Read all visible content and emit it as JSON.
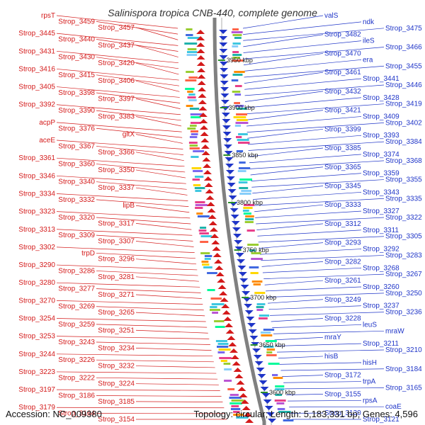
{
  "title": "Salinispora tropica CNB-440, complete genome",
  "accession": "Accession: NC_009380",
  "topology": "Topology: circular; Length: 5,183,331 bp; Genes: 4,596",
  "colors": {
    "left_labels": "#d41a1a",
    "right_labels": "#1f35c8",
    "backbone": "#808080",
    "kbp_marker": "#2a8f2a"
  },
  "kbp_markers": [
    "3950 kbp",
    "3900 kbp",
    "3850 kbp",
    "3800 kbp",
    "3750 kbp",
    "3700 kbp",
    "3650 kbp",
    "3600 kbp"
  ],
  "left_labels": [
    "rpsT",
    "Strop_3459",
    "Strop_3457",
    "Strop_3445",
    "Strop_3440",
    "Strop_3437",
    "Strop_3431",
    "Strop_3430",
    "Strop_3420",
    "Strop_3416",
    "Strop_3415",
    "Strop_3406",
    "Strop_3405",
    "Strop_3398",
    "Strop_3397",
    "Strop_3392",
    "Strop_3390",
    "Strop_3383",
    "acpP",
    "Strop_3376",
    "gltX",
    "aceE",
    "Strop_3367",
    "Strop_3366",
    "Strop_3361",
    "Strop_3360",
    "Strop_3350",
    "Strop_3346",
    "Strop_3340",
    "Strop_3337",
    "Strop_3334",
    "Strop_3332",
    "lipB",
    "Strop_3323",
    "Strop_3320",
    "Strop_3317",
    "Strop_3313",
    "Strop_3309",
    "Strop_3307",
    "Strop_3302",
    "trpD",
    "Strop_3296",
    "Strop_3290",
    "Strop_3286",
    "Strop_3281",
    "Strop_3280",
    "Strop_3277",
    "Strop_3271",
    "Strop_3270",
    "Strop_3269",
    "Strop_3265",
    "Strop_3254",
    "Strop_3259",
    "Strop_3251",
    "Strop_3253",
    "Strop_3243",
    "Strop_3234",
    "Strop_3244",
    "Strop_3226",
    "Strop_3232",
    "Strop_3223",
    "Strop_3222",
    "Strop_3224",
    "Strop_3197",
    "Strop_3186",
    "Strop_3185",
    "Strop_3179",
    "Strop_3164",
    "Strop_3154"
  ],
  "right_labels": [
    "valS",
    "ndk",
    "Strop_3475",
    "Strop_3482",
    "ileS",
    "Strop_3466",
    "Strop_3470",
    "era",
    "Strop_3455",
    "Strop_3461",
    "Strop_3441",
    "Strop_3446",
    "Strop_3432",
    "Strop_3428",
    "Strop_3419",
    "Strop_3421",
    "Strop_3409",
    "Strop_3402",
    "Strop_3399",
    "Strop_3393",
    "Strop_3384",
    "Strop_3385",
    "Strop_3374",
    "Strop_3368",
    "Strop_3365",
    "Strop_3359",
    "Strop_3355",
    "Strop_3345",
    "Strop_3343",
    "Strop_3335",
    "Strop_3333",
    "Strop_3327",
    "Strop_3322",
    "Strop_3312",
    "Strop_3311",
    "Strop_3305",
    "Strop_3293",
    "Strop_3292",
    "Strop_3283",
    "Strop_3282",
    "Strop_3268",
    "Strop_3267",
    "Strop_3261",
    "Strop_3260",
    "Strop_3250",
    "Strop_3249",
    "Strop_3237",
    "Strop_3236",
    "Strop_3228",
    "leuS",
    "mraW",
    "mraY",
    "Strop_3211",
    "Strop_3210",
    "hisB",
    "hisH",
    "Strop_3184",
    "Strop_3172",
    "trpA",
    "Strop_3165",
    "Strop_3155",
    "rpsA",
    "coaE",
    "Strop_3130",
    "Strop_3121"
  ]
}
